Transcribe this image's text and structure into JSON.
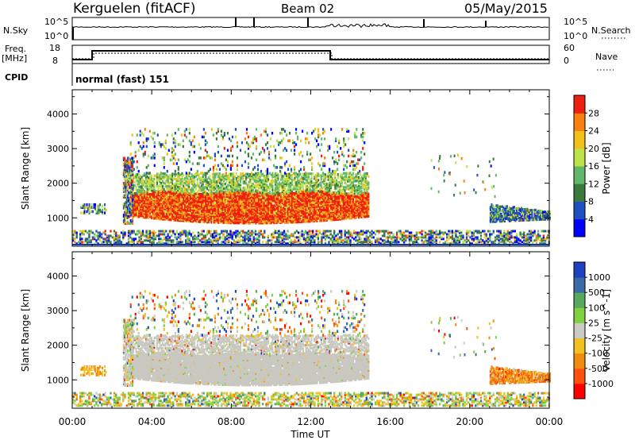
{
  "header": {
    "station": "Kerguelen (fitACF)",
    "beam": "Beam 02",
    "date": "05/May/2015"
  },
  "summary_panel": {
    "nsky_label": "N.Sky",
    "nsky_ticks": [
      "10^5",
      "10^0"
    ],
    "nsearch_label": "N.Search",
    "freq_label_1": "Freq.",
    "freq_label_2": "[MHz]",
    "freq_ticks": [
      "18",
      "8"
    ],
    "nave_ticks": [
      "60",
      "0"
    ],
    "nave_label": "Nave",
    "cpid_label": "CPID",
    "cpid_value": "normal (fast) 151"
  },
  "colors": {
    "power_scale": [
      "#0000ff",
      "#2050c0",
      "#3c7a3c",
      "#62b86a",
      "#bde24a",
      "#f2c019",
      "#f87f10",
      "#ee1e10"
    ],
    "velocity_scale": [
      "#ff0000",
      "#ff5010",
      "#f08a10",
      "#f2c020",
      "#cbcbc3",
      "#80d040",
      "#58a860",
      "#3a6aa8",
      "#2040c0"
    ],
    "ground_scatter": "#c8c8c0"
  },
  "chart_data": [
    {
      "type": "heatmap",
      "title": "Power",
      "ylabel": "Slant Range [km]",
      "ylim": [
        180,
        4700
      ],
      "yticks": [
        "1000",
        "2000",
        "3000",
        "4000"
      ],
      "xlim": [
        0,
        24
      ],
      "colorbar_label": "Power [dB]",
      "colorbar_ticks": [
        "4",
        "8",
        "12",
        "16",
        "20",
        "24",
        "28"
      ],
      "colorbar_range": [
        0,
        32
      ]
    },
    {
      "type": "heatmap",
      "title": "Velocity",
      "ylabel": "Slant Range [km]",
      "ylim": [
        180,
        4700
      ],
      "yticks": [
        "1000",
        "2000",
        "3000",
        "4000"
      ],
      "xlim": [
        0,
        24
      ],
      "xticks": [
        "00:00",
        "04:00",
        "08:00",
        "12:00",
        "16:00",
        "20:00",
        "00:00"
      ],
      "xlabel": "Time UT",
      "colorbar_label": "Velocity [m s^-1]",
      "colorbar_ticks": [
        "1000",
        "500",
        "100",
        "25",
        "-25",
        "-100",
        "-500",
        "-1000"
      ]
    }
  ]
}
